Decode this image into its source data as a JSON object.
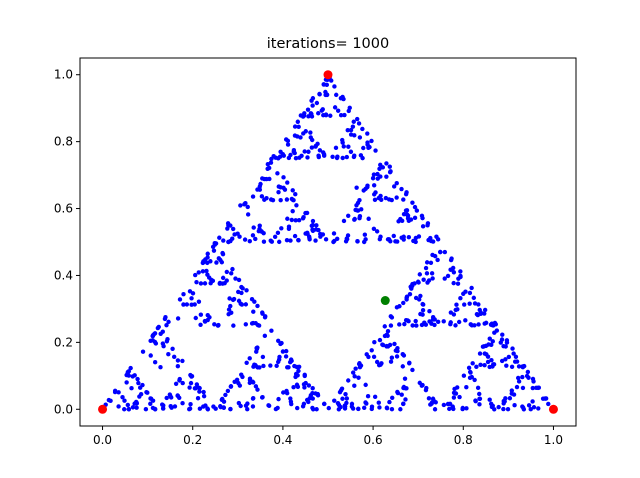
{
  "chart_data": {
    "type": "scatter",
    "title": "iterations= 1000",
    "xlabel": "",
    "ylabel": "",
    "xlim": [
      -0.05,
      1.05
    ],
    "ylim": [
      -0.05,
      1.05
    ],
    "x_ticks": [
      0.0,
      0.2,
      0.4,
      0.6,
      0.8,
      1.0
    ],
    "y_ticks": [
      0.0,
      0.2,
      0.4,
      0.6,
      0.8,
      1.0
    ],
    "x_tick_labels": [
      "0.0",
      "0.2",
      "0.4",
      "0.6",
      "0.8",
      "1.0"
    ],
    "y_tick_labels": [
      "0.0",
      "0.2",
      "0.4",
      "0.6",
      "0.8",
      "1.0"
    ],
    "grid": false,
    "series": [
      {
        "kind": "vertices",
        "color": "#ff0000",
        "points": [
          [
            0.0,
            0.0
          ],
          [
            0.5,
            1.0
          ],
          [
            1.0,
            0.0
          ]
        ]
      },
      {
        "kind": "start-point",
        "color": "#008000",
        "points": [
          [
            0.627,
            0.325
          ]
        ]
      },
      {
        "kind": "chaos-game-points",
        "color": "#0000ff",
        "count": 1000,
        "vertices": [
          [
            0.0,
            0.0
          ],
          [
            0.5,
            1.0
          ],
          [
            1.0,
            0.0
          ]
        ],
        "start": [
          0.627,
          0.325
        ]
      }
    ]
  }
}
